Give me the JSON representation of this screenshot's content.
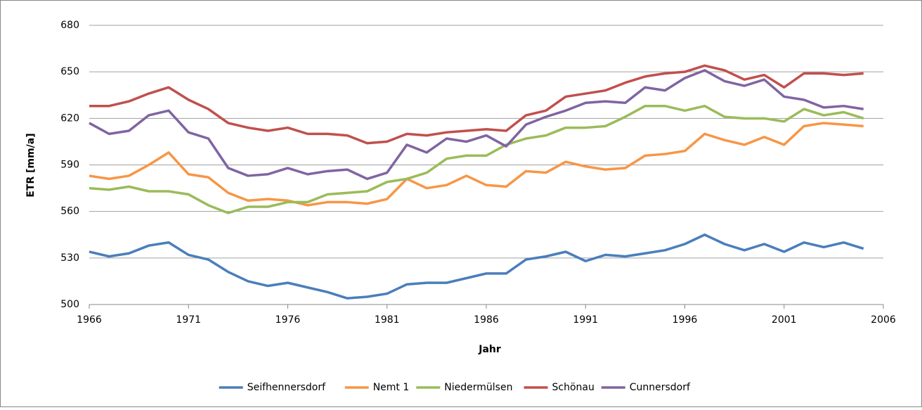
{
  "chart_data": {
    "type": "line",
    "xlabel": "Jahr",
    "ylabel": "ETR [mm/a]",
    "x": [
      1966,
      1967,
      1968,
      1969,
      1970,
      1971,
      1972,
      1973,
      1974,
      1975,
      1976,
      1977,
      1978,
      1979,
      1980,
      1981,
      1982,
      1983,
      1984,
      1985,
      1986,
      1987,
      1988,
      1989,
      1990,
      1991,
      1992,
      1993,
      1994,
      1995,
      1996,
      1997,
      1998,
      1999,
      2000,
      2001,
      2002,
      2003,
      2004,
      2005
    ],
    "xlim": [
      1966,
      2006
    ],
    "xticks": [
      1966,
      1971,
      1976,
      1981,
      1986,
      1991,
      1996,
      2001,
      2006
    ],
    "ylim": [
      500,
      680
    ],
    "yticks": [
      500,
      530,
      560,
      590,
      620,
      650,
      680
    ],
    "grid": true,
    "legend": "bottom",
    "series": [
      {
        "name": "Seifhennersdorf",
        "color": "#4a7ebb",
        "values": [
          534,
          531,
          533,
          538,
          540,
          532,
          529,
          521,
          515,
          512,
          514,
          511,
          508,
          504,
          505,
          507,
          513,
          514,
          514,
          517,
          520,
          520,
          529,
          531,
          534,
          528,
          532,
          531,
          533,
          535,
          539,
          545,
          539,
          535,
          539,
          534,
          540,
          537,
          540,
          536
        ]
      },
      {
        "name": "Nemt 1",
        "color": "#f79646",
        "values": [
          583,
          581,
          583,
          590,
          598,
          584,
          582,
          572,
          567,
          568,
          567,
          564,
          566,
          566,
          565,
          568,
          581,
          575,
          577,
          583,
          577,
          576,
          586,
          585,
          592,
          589,
          587,
          588,
          596,
          597,
          599,
          610,
          606,
          603,
          608,
          603,
          615,
          617,
          616,
          615
        ]
      },
      {
        "name": "Niedermülsen",
        "color": "#9bbb59",
        "values": [
          575,
          574,
          576,
          573,
          573,
          571,
          564,
          559,
          563,
          563,
          566,
          566,
          571,
          572,
          573,
          579,
          581,
          585,
          594,
          596,
          596,
          603,
          607,
          609,
          614,
          614,
          615,
          621,
          628,
          628,
          625,
          628,
          621,
          620,
          620,
          618,
          626,
          622,
          624,
          620
        ]
      },
      {
        "name": "Schönau",
        "color": "#c0504d",
        "values": [
          628,
          628,
          631,
          636,
          640,
          632,
          626,
          617,
          614,
          612,
          614,
          610,
          610,
          609,
          604,
          605,
          610,
          609,
          611,
          612,
          613,
          612,
          622,
          625,
          634,
          636,
          638,
          643,
          647,
          649,
          650,
          654,
          651,
          645,
          648,
          640,
          649,
          649,
          648,
          649
        ]
      },
      {
        "name": "Cunnersdorf",
        "color": "#8064a2",
        "values": [
          617,
          610,
          612,
          622,
          625,
          611,
          607,
          588,
          583,
          584,
          588,
          584,
          586,
          587,
          581,
          585,
          603,
          598,
          607,
          605,
          609,
          602,
          616,
          621,
          625,
          630,
          631,
          630,
          640,
          638,
          646,
          651,
          644,
          641,
          645,
          634,
          632,
          627,
          628,
          626
        ]
      }
    ]
  }
}
